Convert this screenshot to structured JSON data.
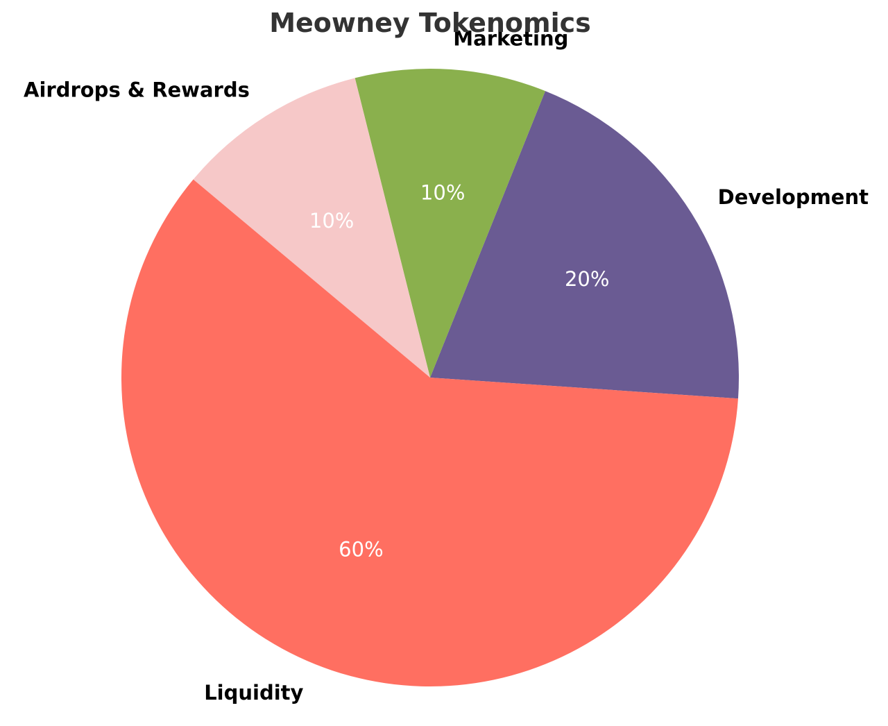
{
  "chart_data": {
    "type": "pie",
    "title": "Meowney Tokenomics",
    "categories": [
      "Development",
      "Marketing",
      "Airdrops & Rewards",
      "Liquidity"
    ],
    "values": [
      20,
      10,
      10,
      60
    ],
    "percent_labels": [
      "20%",
      "10%",
      "10%",
      "60%"
    ],
    "colors": [
      "#6a5b93",
      "#8ab04d",
      "#f6c8c8",
      "#ff6f61"
    ],
    "start_angle_deg": -3.9,
    "direction": "counterclockwise",
    "legend": "none"
  }
}
